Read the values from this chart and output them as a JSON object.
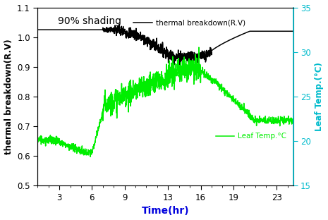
{
  "title": "90% shading",
  "xlabel": "Time(hr)",
  "ylabel_left": "thermal breakdown(R.V)",
  "ylabel_right": "Leaf Temp.(°C)",
  "left_ylim": [
    0.5,
    1.1
  ],
  "right_ylim": [
    15,
    35
  ],
  "left_yticks": [
    0.5,
    0.6,
    0.7,
    0.8,
    0.9,
    1.0,
    1.1
  ],
  "right_yticks": [
    15,
    20,
    25,
    30,
    35
  ],
  "xticks": [
    3,
    6,
    9,
    13,
    16,
    19,
    23
  ],
  "xlim": [
    1,
    24.5
  ],
  "line_black_label": "thermal breakdown(R.V)",
  "line_green_label": "Leaf Temp.°C",
  "black_color": "#000000",
  "green_color": "#00ee00",
  "cyan_color": "#00bbcc",
  "xlabel_color": "#0000dd"
}
